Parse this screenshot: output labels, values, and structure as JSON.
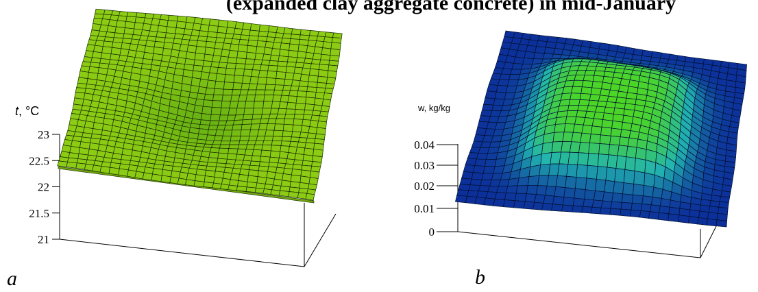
{
  "title": "(expanded clay aggregate concrete) in mid-January",
  "chart_data": [
    {
      "type": "surface",
      "panel_label": "a",
      "zlabel": "t, °C",
      "zlim": [
        21,
        23
      ],
      "zticks": [
        "23",
        "22.5",
        "22",
        "21.5",
        "21"
      ],
      "grid": "30x30",
      "surface_description": "nearly flat plane near 22.6–22.8 °C with a shallow depression toward the center",
      "colors": {
        "surface": "#8ccc14",
        "surface_low": "#5aa814",
        "mesh": "#1a2a00"
      }
    },
    {
      "type": "surface",
      "panel_label": "b",
      "zlabel": "w, kg/kg",
      "zlim": [
        0,
        0.045
      ],
      "zticks": [
        "0.04",
        "0.03",
        "0.02",
        "0.01",
        "0"
      ],
      "grid": "30x30",
      "surface_description": "plateau (~0.04) over the central region, falling to ~0.015 near the edges",
      "colors": {
        "surface_high": "#4dd624",
        "surface_mid": "#22b4b0",
        "surface_low": "#0c2f9a",
        "mesh": "#001030"
      }
    }
  ]
}
